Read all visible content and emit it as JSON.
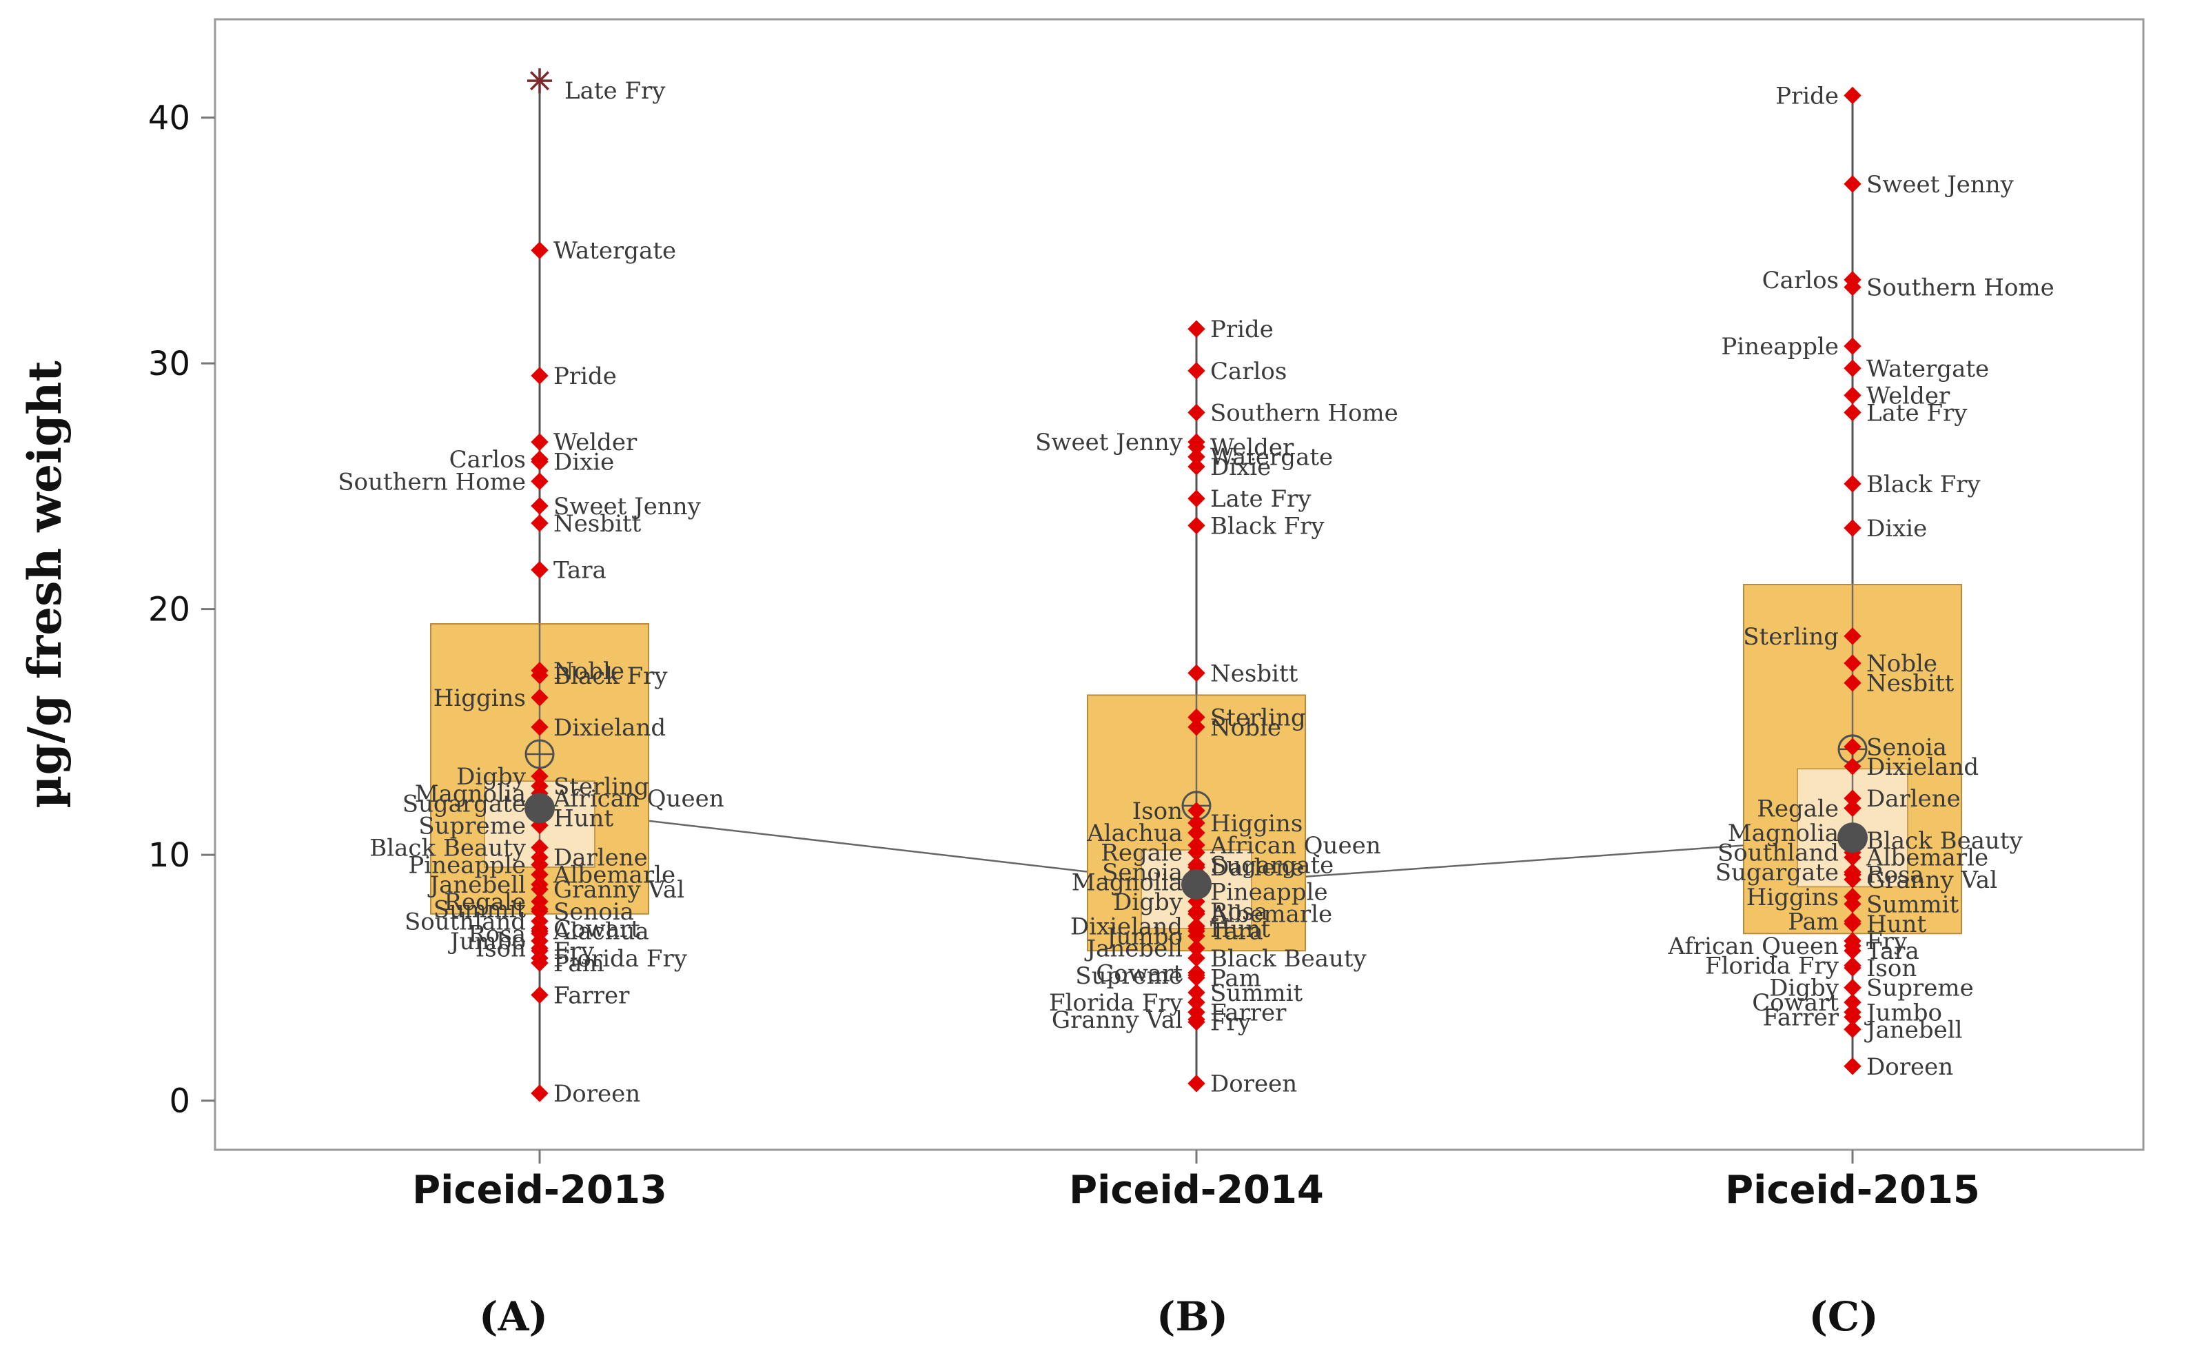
{
  "chart_data": {
    "type": "boxplot",
    "ylabel": "µg/g fresh weight",
    "xlabel": "",
    "ylim": [
      -2,
      44
    ],
    "yticks": [
      0,
      10,
      20,
      30,
      40
    ],
    "grid": false,
    "colors": {
      "box_outer": "#F2C466",
      "box_inner": "#FBE6C4",
      "box_edge": "#B88A3A",
      "point": "#E00000",
      "mean": "#505050",
      "whisker": "#555555",
      "connect": "#666666"
    },
    "categories": [
      "Piceid-2013",
      "Piceid-2014",
      "Piceid-2015"
    ],
    "panel_labels": [
      "(A)",
      "(B)",
      "(C)"
    ],
    "boxes": [
      {
        "name": "Piceid-2013",
        "q1": 7.6,
        "median": 11.9,
        "q3": 19.4,
        "inner_low": 9.5,
        "inner_high": 13.0,
        "whisker_low": 0.3,
        "whisker_high": 41.5,
        "mean": 14.1,
        "outlier": {
          "label": "Late Fry",
          "value": 41.5
        }
      },
      {
        "name": "Piceid-2014",
        "q1": 6.1,
        "median": 8.8,
        "q3": 16.5,
        "inner_low": 7.0,
        "inner_high": 10.2,
        "whisker_low": 0.7,
        "whisker_high": 31.4,
        "mean": 12.0
      },
      {
        "name": "Piceid-2015",
        "q1": 6.8,
        "median": 10.7,
        "q3": 21.0,
        "inner_low": 8.7,
        "inner_high": 13.5,
        "whisker_low": 1.4,
        "whisker_high": 40.9,
        "mean": 14.3
      }
    ],
    "series": [
      {
        "name": "Piceid-2013",
        "points": [
          {
            "label": "Watergate",
            "value": 34.6,
            "side": "right"
          },
          {
            "label": "Pride",
            "value": 29.5,
            "side": "right"
          },
          {
            "label": "Welder",
            "value": 26.8,
            "side": "right"
          },
          {
            "label": "Carlos",
            "value": 26.1,
            "side": "left"
          },
          {
            "label": "Dixie",
            "value": 26.0,
            "side": "right"
          },
          {
            "label": "Southern Home",
            "value": 25.2,
            "side": "left"
          },
          {
            "label": "Sweet Jenny",
            "value": 24.2,
            "side": "right"
          },
          {
            "label": "Nesbitt",
            "value": 23.5,
            "side": "right"
          },
          {
            "label": "Tara",
            "value": 21.6,
            "side": "right"
          },
          {
            "label": "Noble",
            "value": 17.5,
            "side": "right"
          },
          {
            "label": "Black Fry",
            "value": 17.3,
            "side": "right"
          },
          {
            "label": "Higgins",
            "value": 16.4,
            "side": "left"
          },
          {
            "label": "Dixieland",
            "value": 15.2,
            "side": "right"
          },
          {
            "label": "Digby",
            "value": 13.2,
            "side": "left"
          },
          {
            "label": "Sterling",
            "value": 12.8,
            "side": "right"
          },
          {
            "label": "Magnolia",
            "value": 12.5,
            "side": "left"
          },
          {
            "label": "African Queen",
            "value": 12.3,
            "side": "right"
          },
          {
            "label": "Sugargate",
            "value": 12.1,
            "side": "left"
          },
          {
            "label": "Hunt",
            "value": 11.5,
            "side": "right"
          },
          {
            "label": "Supreme",
            "value": 11.2,
            "side": "left"
          },
          {
            "label": "Black Beauty",
            "value": 10.3,
            "side": "left"
          },
          {
            "label": "Darlene",
            "value": 9.9,
            "side": "right"
          },
          {
            "label": "Pineapple",
            "value": 9.6,
            "side": "left"
          },
          {
            "label": "Albemarle",
            "value": 9.2,
            "side": "right"
          },
          {
            "label": "Janebell",
            "value": 8.8,
            "side": "left"
          },
          {
            "label": "Granny Val",
            "value": 8.6,
            "side": "right"
          },
          {
            "label": "Regale",
            "value": 8.1,
            "side": "left"
          },
          {
            "label": "Summit",
            "value": 7.8,
            "side": "left"
          },
          {
            "label": "Senoia",
            "value": 7.7,
            "side": "right"
          },
          {
            "label": "Southland",
            "value": 7.3,
            "side": "left"
          },
          {
            "label": "Cowart",
            "value": 7.0,
            "side": "right"
          },
          {
            "label": "Alachua",
            "value": 6.9,
            "side": "right"
          },
          {
            "label": "Rosa",
            "value": 6.8,
            "side": "left"
          },
          {
            "label": "Jumbo",
            "value": 6.5,
            "side": "left"
          },
          {
            "label": "Ison",
            "value": 6.2,
            "side": "left"
          },
          {
            "label": "Fry",
            "value": 6.1,
            "side": "right"
          },
          {
            "label": "Florida Fry",
            "value": 5.8,
            "side": "right"
          },
          {
            "label": "Pam",
            "value": 5.6,
            "side": "right"
          },
          {
            "label": "Farrer",
            "value": 4.3,
            "side": "right"
          },
          {
            "label": "Doreen",
            "value": 0.3,
            "side": "right"
          }
        ]
      },
      {
        "name": "Piceid-2014",
        "points": [
          {
            "label": "Pride",
            "value": 31.4,
            "side": "right"
          },
          {
            "label": "Carlos",
            "value": 29.7,
            "side": "right"
          },
          {
            "label": "Southern Home",
            "value": 28.0,
            "side": "right"
          },
          {
            "label": "Sweet Jenny",
            "value": 26.8,
            "side": "left"
          },
          {
            "label": "Welder",
            "value": 26.6,
            "side": "right"
          },
          {
            "label": "Watergate",
            "value": 26.2,
            "side": "right"
          },
          {
            "label": "Dixie",
            "value": 25.8,
            "side": "right"
          },
          {
            "label": "Late Fry",
            "value": 24.5,
            "side": "right"
          },
          {
            "label": "Black Fry",
            "value": 23.4,
            "side": "right"
          },
          {
            "label": "Nesbitt",
            "value": 17.4,
            "side": "right"
          },
          {
            "label": "Sterling",
            "value": 15.6,
            "side": "right"
          },
          {
            "label": "Noble",
            "value": 15.2,
            "side": "right"
          },
          {
            "label": "Ison",
            "value": 11.8,
            "side": "left"
          },
          {
            "label": "Higgins",
            "value": 11.3,
            "side": "right"
          },
          {
            "label": "Alachua",
            "value": 10.9,
            "side": "left"
          },
          {
            "label": "African Queen",
            "value": 10.4,
            "side": "right"
          },
          {
            "label": "Regale",
            "value": 10.1,
            "side": "left"
          },
          {
            "label": "Sugargate",
            "value": 9.6,
            "side": "right"
          },
          {
            "label": "Darlene",
            "value": 9.5,
            "side": "right"
          },
          {
            "label": "Senoia",
            "value": 9.3,
            "side": "left"
          },
          {
            "label": "Magnolia",
            "value": 8.9,
            "side": "left"
          },
          {
            "label": "Pineapple",
            "value": 8.5,
            "side": "right"
          },
          {
            "label": "Digby",
            "value": 8.1,
            "side": "left"
          },
          {
            "label": "Rosa",
            "value": 7.7,
            "side": "right"
          },
          {
            "label": "Albemarle",
            "value": 7.6,
            "side": "right"
          },
          {
            "label": "Dixieland",
            "value": 7.1,
            "side": "left"
          },
          {
            "label": "Tara",
            "value": 6.9,
            "side": "right"
          },
          {
            "label": "Hunt",
            "value": 7.0,
            "side": "right"
          },
          {
            "label": "Jumbo",
            "value": 6.7,
            "side": "left"
          },
          {
            "label": "Janebell",
            "value": 6.2,
            "side": "left"
          },
          {
            "label": "Black Beauty",
            "value": 5.8,
            "side": "right"
          },
          {
            "label": "Cowart",
            "value": 5.2,
            "side": "left"
          },
          {
            "label": "Supreme",
            "value": 5.1,
            "side": "left"
          },
          {
            "label": "Pam",
            "value": 5.0,
            "side": "right"
          },
          {
            "label": "Summit",
            "value": 4.4,
            "side": "right"
          },
          {
            "label": "Florida Fry",
            "value": 4.0,
            "side": "left"
          },
          {
            "label": "Farrer",
            "value": 3.6,
            "side": "right"
          },
          {
            "label": "Granny Val",
            "value": 3.3,
            "side": "left"
          },
          {
            "label": "Fry",
            "value": 3.2,
            "side": "right"
          },
          {
            "label": "Doreen",
            "value": 0.7,
            "side": "right"
          }
        ]
      },
      {
        "name": "Piceid-2015",
        "points": [
          {
            "label": "Pride",
            "value": 40.9,
            "side": "left"
          },
          {
            "label": "Sweet Jenny",
            "value": 37.3,
            "side": "right"
          },
          {
            "label": "Carlos",
            "value": 33.4,
            "side": "left"
          },
          {
            "label": "Southern Home",
            "value": 33.1,
            "side": "right"
          },
          {
            "label": "Pineapple",
            "value": 30.7,
            "side": "left"
          },
          {
            "label": "Watergate",
            "value": 29.8,
            "side": "right"
          },
          {
            "label": "Welder",
            "value": 28.7,
            "side": "right"
          },
          {
            "label": "Late Fry",
            "value": 28.0,
            "side": "right"
          },
          {
            "label": "Black Fry",
            "value": 25.1,
            "side": "right"
          },
          {
            "label": "Dixie",
            "value": 23.3,
            "side": "right"
          },
          {
            "label": "Sterling",
            "value": 18.9,
            "side": "left"
          },
          {
            "label": "Noble",
            "value": 17.8,
            "side": "right"
          },
          {
            "label": "Nesbitt",
            "value": 17.0,
            "side": "right"
          },
          {
            "label": "Senoia",
            "value": 14.4,
            "side": "right"
          },
          {
            "label": "Dixieland",
            "value": 13.6,
            "side": "right"
          },
          {
            "label": "Darlene",
            "value": 12.3,
            "side": "right"
          },
          {
            "label": "Regale",
            "value": 11.9,
            "side": "left"
          },
          {
            "label": "Magnolia",
            "value": 10.9,
            "side": "left"
          },
          {
            "label": "Black Beauty",
            "value": 10.6,
            "side": "right"
          },
          {
            "label": "Southland",
            "value": 10.1,
            "side": "left"
          },
          {
            "label": "Albemarle",
            "value": 9.9,
            "side": "right"
          },
          {
            "label": "Sugargate",
            "value": 9.3,
            "side": "left"
          },
          {
            "label": "Rosa",
            "value": 9.2,
            "side": "right"
          },
          {
            "label": "Granny Val",
            "value": 9.0,
            "side": "right"
          },
          {
            "label": "Higgins",
            "value": 8.3,
            "side": "left"
          },
          {
            "label": "Summit",
            "value": 8.0,
            "side": "right"
          },
          {
            "label": "Pam",
            "value": 7.3,
            "side": "left"
          },
          {
            "label": "Hunt",
            "value": 7.2,
            "side": "right"
          },
          {
            "label": "Fry",
            "value": 6.5,
            "side": "right"
          },
          {
            "label": "African Queen",
            "value": 6.3,
            "side": "left"
          },
          {
            "label": "Tara",
            "value": 6.1,
            "side": "right"
          },
          {
            "label": "Florida Fry",
            "value": 5.5,
            "side": "left"
          },
          {
            "label": "Ison",
            "value": 5.4,
            "side": "right"
          },
          {
            "label": "Digby",
            "value": 4.6,
            "side": "left"
          },
          {
            "label": "Supreme",
            "value": 4.6,
            "side": "right"
          },
          {
            "label": "Cowart",
            "value": 4.0,
            "side": "left"
          },
          {
            "label": "Jumbo",
            "value": 3.6,
            "side": "right"
          },
          {
            "label": "Farrer",
            "value": 3.4,
            "side": "left"
          },
          {
            "label": "Janebell",
            "value": 2.9,
            "side": "right"
          },
          {
            "label": "Doreen",
            "value": 1.4,
            "side": "right"
          }
        ]
      }
    ]
  }
}
